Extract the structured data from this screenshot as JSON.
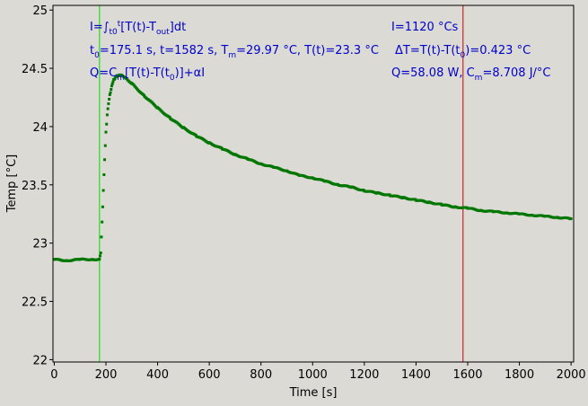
{
  "chart_data": {
    "type": "scatter",
    "xlabel": "Time [s]",
    "ylabel": "Temp [°C]",
    "xlim": [
      -5,
      2010
    ],
    "ylim": [
      21.98,
      25.04
    ],
    "x_ticks": [
      0,
      200,
      400,
      600,
      800,
      1000,
      1200,
      1400,
      1600,
      1800,
      2000
    ],
    "y_ticks": [
      22,
      22.5,
      23,
      23.5,
      24,
      24.5,
      25
    ],
    "x_tick_labels": [
      "0",
      "200",
      "400",
      "600",
      "800",
      "1000",
      "1200",
      "1400",
      "1600",
      "1800",
      "2000"
    ],
    "y_tick_labels": [
      "22",
      "22.5",
      "23",
      "23.5",
      "24",
      "24.5",
      "25"
    ],
    "grid": false,
    "colors": {
      "points": "#007700",
      "t0_line": "#00dd00",
      "t_line": "#cc0000",
      "annotation": "#0000cc",
      "background": "#dcdad5"
    },
    "vertical_lines": [
      {
        "x": 175.1,
        "color": "#00dd00"
      },
      {
        "x": 1582,
        "color": "#cc0000"
      }
    ],
    "series_points": [
      [
        0,
        22.86
      ],
      [
        50,
        22.85
      ],
      [
        100,
        22.86
      ],
      [
        150,
        22.86
      ],
      [
        175,
        22.86
      ],
      [
        180,
        22.92
      ],
      [
        185,
        23.18
      ],
      [
        190,
        23.45
      ],
      [
        195,
        23.72
      ],
      [
        200,
        23.95
      ],
      [
        205,
        24.1
      ],
      [
        210,
        24.2
      ],
      [
        215,
        24.27
      ],
      [
        220,
        24.32
      ],
      [
        225,
        24.37
      ],
      [
        230,
        24.4
      ],
      [
        240,
        24.43
      ],
      [
        250,
        24.44
      ],
      [
        260,
        24.44
      ],
      [
        275,
        24.42
      ],
      [
        300,
        24.37
      ],
      [
        350,
        24.26
      ],
      [
        400,
        24.16
      ],
      [
        450,
        24.07
      ],
      [
        500,
        23.99
      ],
      [
        550,
        23.92
      ],
      [
        600,
        23.86
      ],
      [
        650,
        23.81
      ],
      [
        700,
        23.76
      ],
      [
        750,
        23.72
      ],
      [
        800,
        23.68
      ],
      [
        850,
        23.65
      ],
      [
        900,
        23.62
      ],
      [
        950,
        23.58
      ],
      [
        1000,
        23.56
      ],
      [
        1050,
        23.53
      ],
      [
        1100,
        23.5
      ],
      [
        1150,
        23.48
      ],
      [
        1200,
        23.45
      ],
      [
        1250,
        23.43
      ],
      [
        1300,
        23.41
      ],
      [
        1350,
        23.39
      ],
      [
        1400,
        23.37
      ],
      [
        1450,
        23.35
      ],
      [
        1500,
        23.33
      ],
      [
        1550,
        23.31
      ],
      [
        1600,
        23.3
      ],
      [
        1650,
        23.28
      ],
      [
        1700,
        23.27
      ],
      [
        1750,
        23.26
      ],
      [
        1800,
        23.25
      ],
      [
        1850,
        23.24
      ],
      [
        1900,
        23.23
      ],
      [
        1950,
        23.22
      ],
      [
        2000,
        23.21
      ]
    ],
    "annotations": {
      "integral_def": {
        "main": "I=∫",
        "sub1": "t0",
        "sup1": "t",
        "rest": "[T(t)-T",
        "sub2": "out",
        "end": "]dt"
      },
      "integral_val": "I=1120 °Cs",
      "params": {
        "t0_pre": "t",
        "t0_sub": "0",
        "t0_post": "=175.1 s,   t=1582 s,   T",
        "tm_sub": "m",
        "tm_post": "=29.97 °C,  T(t)=23.3 °C"
      },
      "delta_t": {
        "pre": "ΔT=T(t)-T(t",
        "sub": "0",
        "post": ")=0.423 °C"
      },
      "q_formula": {
        "pre": "Q=C",
        "sub1": "m",
        "mid": "[T(t)-T(t",
        "sub2": "0",
        "post": ")]+αI"
      },
      "q_value": {
        "pre": "Q=58.08 W,   C",
        "sub": "m",
        "post": "=8.708 J/°C"
      }
    }
  }
}
